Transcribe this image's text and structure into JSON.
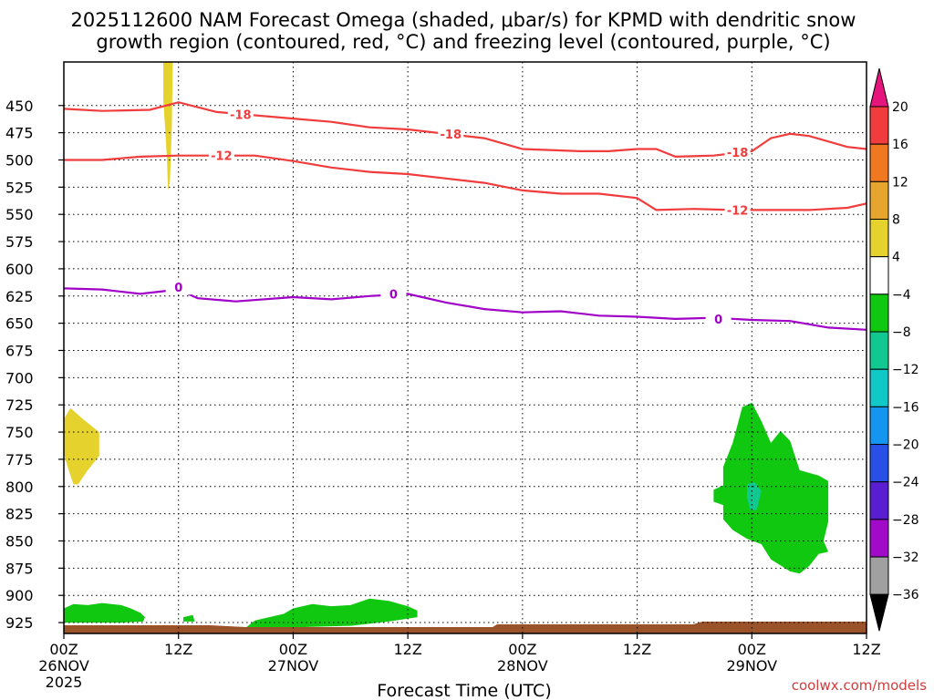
{
  "chart_data": {
    "type": "heatmap",
    "title_line1": "2025112600 NAM Forecast Omega (shaded, μbar/s) for KPMD with dendritic snow",
    "title_line2": "growth region (contoured, red, °C) and freezing level (contoured, purple, °C)",
    "xlabel": "Forecast Time (UTC)",
    "credit": "coolwx.com/models",
    "x_range_hours": [
      0,
      84
    ],
    "y_range_hpa": [
      410,
      935
    ],
    "y_ticks": [
      450,
      475,
      500,
      525,
      550,
      575,
      600,
      625,
      650,
      675,
      700,
      725,
      750,
      775,
      800,
      825,
      850,
      875,
      900,
      925
    ],
    "x_ticks": [
      {
        "hour": 0,
        "label": "00Z",
        "date": "26NOV",
        "year": "2025"
      },
      {
        "hour": 12,
        "label": "12Z",
        "date": "",
        "year": ""
      },
      {
        "hour": 24,
        "label": "00Z",
        "date": "27NOV",
        "year": ""
      },
      {
        "hour": 36,
        "label": "12Z",
        "date": "",
        "year": ""
      },
      {
        "hour": 48,
        "label": "00Z",
        "date": "28NOV",
        "year": ""
      },
      {
        "hour": 60,
        "label": "12Z",
        "date": "",
        "year": ""
      },
      {
        "hour": 72,
        "label": "00Z",
        "date": "29NOV",
        "year": ""
      },
      {
        "hour": 84,
        "label": "12Z",
        "date": "",
        "year": ""
      }
    ],
    "colorbar": {
      "labels": [
        "20",
        "16",
        "12",
        "8",
        "4",
        "−4",
        "−8",
        "−12",
        "−16",
        "−20",
        "−24",
        "−28",
        "−32",
        "−36"
      ],
      "colors": [
        "#f03c3c",
        "#f07820",
        "#e6a52d",
        "#e6d22d",
        "#ffffff",
        "#10c810",
        "#10c890",
        "#10c8c8",
        "#1496f0",
        "#2850e6",
        "#5a1ed2",
        "#a00ac8",
        "#a0a0a0"
      ],
      "top_color": "#e6147d",
      "bottom_color": "#000000"
    },
    "contours": [
      {
        "level": "-18",
        "color": "#f03c3c",
        "points": [
          [
            0,
            453
          ],
          [
            4,
            455
          ],
          [
            9,
            454
          ],
          [
            12,
            447
          ],
          [
            16,
            456
          ],
          [
            24,
            462
          ],
          [
            28,
            465
          ],
          [
            32,
            470
          ],
          [
            36,
            472
          ],
          [
            40,
            476
          ],
          [
            44,
            480
          ],
          [
            48,
            490
          ],
          [
            54,
            492
          ],
          [
            57,
            492
          ],
          [
            60,
            490
          ],
          [
            62,
            490
          ],
          [
            64,
            497
          ],
          [
            68,
            496
          ],
          [
            72,
            492
          ],
          [
            74,
            480
          ],
          [
            76,
            476
          ],
          [
            78,
            478
          ],
          [
            82,
            488
          ],
          [
            84,
            490
          ]
        ],
        "labels": [
          {
            "x": 18.5,
            "p": 458
          },
          {
            "x": 40.5,
            "p": 476
          },
          {
            "x": 70.5,
            "p": 493
          }
        ]
      },
      {
        "level": "-12",
        "color": "#f03c3c",
        "points": [
          [
            0,
            500
          ],
          [
            4,
            500
          ],
          [
            8,
            497
          ],
          [
            12,
            496
          ],
          [
            16,
            496
          ],
          [
            20,
            496
          ],
          [
            24,
            501
          ],
          [
            28,
            507
          ],
          [
            32,
            511
          ],
          [
            36,
            513
          ],
          [
            40,
            517
          ],
          [
            44,
            521
          ],
          [
            48,
            528
          ],
          [
            52,
            531
          ],
          [
            56,
            531
          ],
          [
            60,
            535
          ],
          [
            62,
            546
          ],
          [
            66,
            545
          ],
          [
            70,
            546
          ],
          [
            74,
            546
          ],
          [
            78,
            546
          ],
          [
            82,
            544
          ],
          [
            84,
            540
          ]
        ],
        "labels": [
          {
            "x": 16.5,
            "p": 496
          },
          {
            "x": 70.5,
            "p": 546
          }
        ]
      },
      {
        "level": "0",
        "color": "#a000c8",
        "points": [
          [
            0,
            618
          ],
          [
            4,
            619
          ],
          [
            8,
            623
          ],
          [
            12,
            619
          ],
          [
            14,
            627
          ],
          [
            18,
            630
          ],
          [
            24,
            626
          ],
          [
            28,
            628
          ],
          [
            32,
            625
          ],
          [
            36,
            623
          ],
          [
            40,
            631
          ],
          [
            44,
            637
          ],
          [
            48,
            640
          ],
          [
            52,
            639
          ],
          [
            56,
            643
          ],
          [
            60,
            644
          ],
          [
            64,
            646
          ],
          [
            68,
            645
          ],
          [
            72,
            647
          ],
          [
            76,
            648
          ],
          [
            80,
            654
          ],
          [
            84,
            656
          ]
        ],
        "labels": [
          {
            "x": 12,
            "p": 617
          },
          {
            "x": 34.5,
            "p": 623
          },
          {
            "x": 68.5,
            "p": 646
          }
        ]
      }
    ],
    "shaded_regions": [
      {
        "value": "4 to 8",
        "color": "#e6d22d",
        "polygon": [
          [
            10.4,
            410
          ],
          [
            11.4,
            410
          ],
          [
            11.3,
            470
          ],
          [
            11.1,
            520
          ],
          [
            10.9,
            528
          ],
          [
            10.8,
            500
          ],
          [
            10.6,
            470
          ],
          [
            10.4,
            445
          ]
        ]
      },
      {
        "value": "4 to 8",
        "color": "#e6d22d",
        "polygon": [
          [
            0,
            738
          ],
          [
            0.7,
            728
          ],
          [
            2,
            738
          ],
          [
            3.7,
            750
          ],
          [
            3.7,
            772
          ],
          [
            2.5,
            785
          ],
          [
            1.5,
            798
          ],
          [
            1,
            798
          ],
          [
            0.4,
            782
          ],
          [
            0,
            770
          ]
        ]
      },
      {
        "value": "-4 to -8",
        "color": "#10c810",
        "polygon": [
          [
            0,
            921
          ],
          [
            0,
            912
          ],
          [
            1,
            908
          ],
          [
            2.5,
            909
          ],
          [
            4,
            907
          ],
          [
            6,
            909
          ],
          [
            7,
            912
          ],
          [
            8,
            916
          ],
          [
            8.5,
            920
          ],
          [
            8.3,
            924
          ],
          [
            6,
            925
          ],
          [
            3,
            925
          ],
          [
            0,
            925
          ]
        ]
      },
      {
        "value": "-4 to -8",
        "color": "#10c810",
        "polygon": [
          [
            12.5,
            920
          ],
          [
            13.5,
            918
          ],
          [
            13.7,
            924
          ],
          [
            12.5,
            924
          ]
        ]
      },
      {
        "value": "-4 to -8",
        "color": "#10c810",
        "polygon": [
          [
            19,
            930
          ],
          [
            20,
            923
          ],
          [
            23,
            917
          ],
          [
            24,
            912
          ],
          [
            25,
            910
          ],
          [
            26,
            908
          ],
          [
            28,
            910
          ],
          [
            30,
            909
          ],
          [
            32,
            903
          ],
          [
            34,
            905
          ],
          [
            36,
            910
          ],
          [
            37,
            914
          ],
          [
            37,
            920
          ],
          [
            34,
            924
          ],
          [
            30,
            928
          ],
          [
            26,
            929
          ],
          [
            22,
            930
          ],
          [
            20,
            931
          ]
        ]
      },
      {
        "value": "-4 to -8",
        "color": "#10c810",
        "polygon": [
          [
            68,
            814
          ],
          [
            68,
            803
          ],
          [
            69,
            799
          ],
          [
            69,
            782
          ],
          [
            70,
            760
          ],
          [
            71,
            727
          ],
          [
            72,
            723
          ],
          [
            73,
            740
          ],
          [
            74,
            760
          ],
          [
            75,
            749
          ],
          [
            76,
            758
          ],
          [
            77,
            785
          ],
          [
            79,
            790
          ],
          [
            80,
            795
          ],
          [
            80,
            832
          ],
          [
            79.5,
            850
          ],
          [
            80,
            860
          ],
          [
            79,
            862
          ],
          [
            78,
            873
          ],
          [
            77,
            880
          ],
          [
            76,
            878
          ],
          [
            74,
            867
          ],
          [
            73,
            853
          ],
          [
            71.5,
            848
          ],
          [
            70,
            840
          ],
          [
            69,
            830
          ],
          [
            69,
            817
          ]
        ]
      },
      {
        "value": "-8 to -12",
        "color": "#10c890",
        "polygon": [
          [
            71.5,
            798
          ],
          [
            72.3,
            796
          ],
          [
            73,
            804
          ],
          [
            72.5,
            822
          ],
          [
            71.8,
            821
          ],
          [
            71.5,
            810
          ]
        ]
      }
    ]
  }
}
